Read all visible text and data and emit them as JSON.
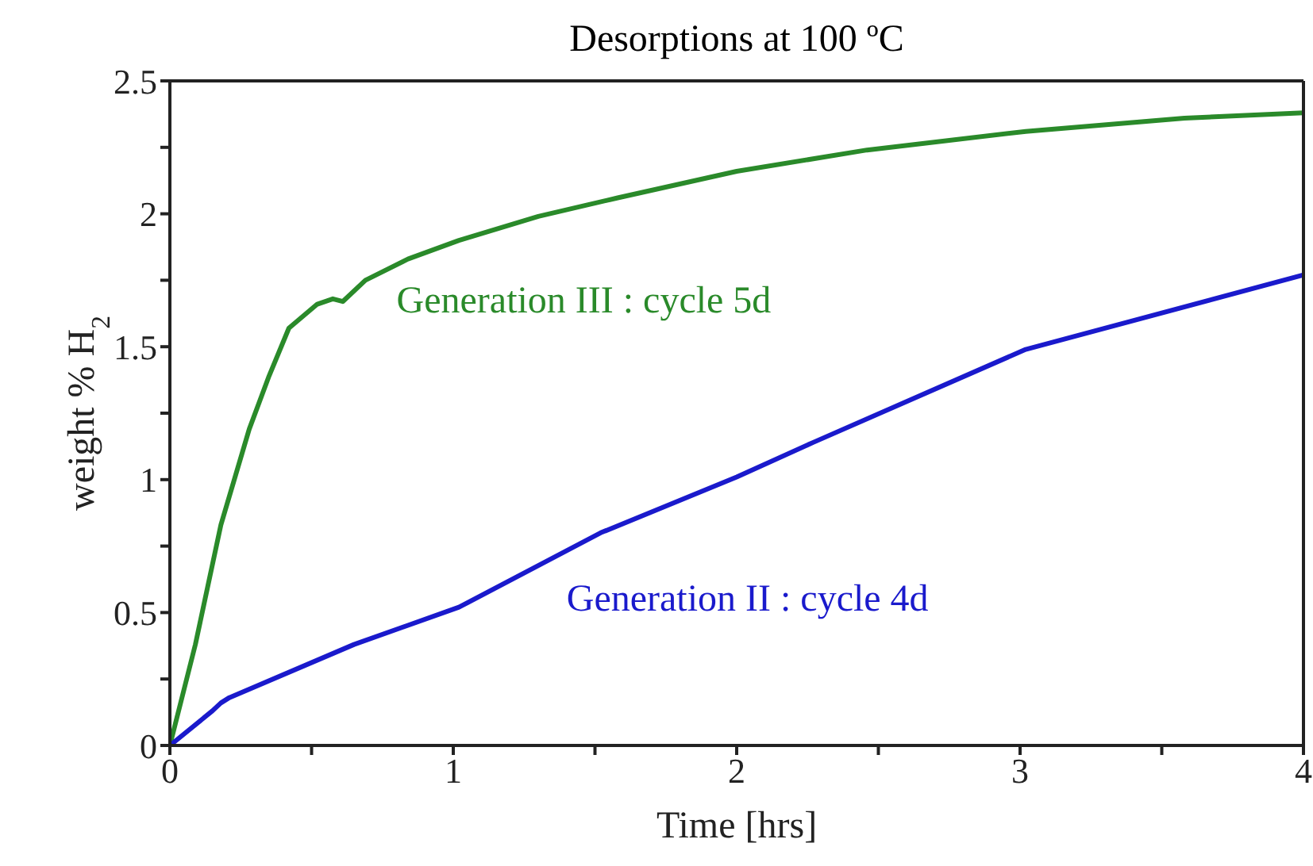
{
  "chart_data": {
    "type": "line",
    "title": "Desorptions at 100 ºC",
    "xlabel": "Time [hrs]",
    "ylabel": "weight % H$_{2}$",
    "xlim": [
      0,
      4
    ],
    "xticks": [
      0,
      {
        "value": 0.5,
        "label": null
      },
      1,
      {
        "value": 1.5,
        "label": null
      },
      2,
      {
        "value": 2.5,
        "label": null
      },
      3,
      {
        "value": 3.5,
        "label": null
      },
      4
    ],
    "ylim": [
      0,
      2.5
    ],
    "yticks": [
      0,
      {
        "value": 0.25,
        "label": null
      },
      0.5,
      {
        "value": 0.75,
        "label": null
      },
      1,
      {
        "value": 1.25,
        "label": null
      },
      1.5,
      {
        "value": 1.75,
        "label": null
      },
      2,
      {
        "value": 2.25,
        "label": null
      },
      2.5
    ],
    "marker": "none",
    "series": [
      {
        "name": "Generation III : cycle 5d",
        "color": "#2a8a2a",
        "x": [
          0,
          0.09,
          0.18,
          0.28,
          0.35,
          0.42,
          0.52,
          0.575,
          0.61,
          0.69,
          0.84,
          1.02,
          1.3,
          1.58,
          2.0,
          2.46,
          3.02,
          3.58,
          4.0
        ],
        "values": [
          0,
          0.38,
          0.83,
          1.19,
          1.39,
          1.57,
          1.66,
          1.68,
          1.67,
          1.75,
          1.83,
          1.9,
          1.99,
          2.06,
          2.16,
          2.24,
          2.31,
          2.36,
          2.38
        ]
      },
      {
        "name": "Generation II : cycle 4d",
        "color": "#1a1acc",
        "x": [
          0,
          0.15,
          0.18,
          0.21,
          0.65,
          1.02,
          1.52,
          2.0,
          2.27,
          3.02,
          4.0
        ],
        "values": [
          0,
          0.13,
          0.16,
          0.18,
          0.38,
          0.52,
          0.8,
          1.01,
          1.14,
          1.49,
          1.77
        ]
      }
    ]
  }
}
